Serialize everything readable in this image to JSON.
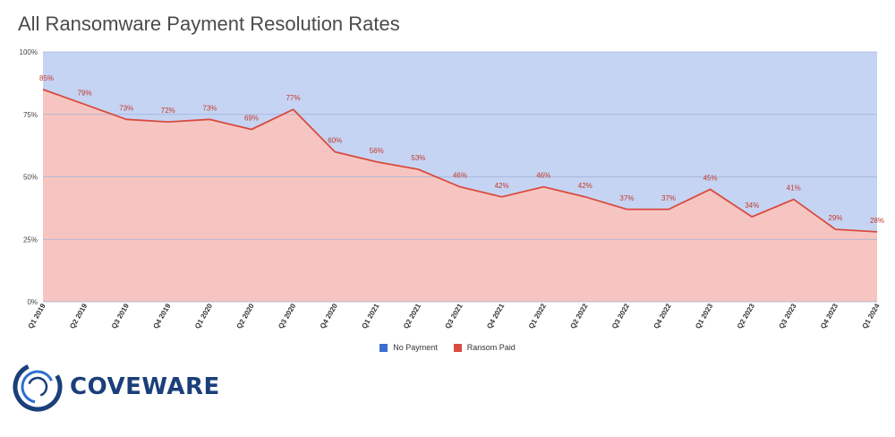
{
  "chart_data": {
    "type": "area",
    "title": "All Ransomware Payment Resolution Rates",
    "categories": [
      "Q1 2019",
      "Q2 2019",
      "Q3 2019",
      "Q4 2019",
      "Q1 2020",
      "Q2 2020",
      "Q3 2020",
      "Q4 2020",
      "Q1 2021",
      "Q2 2021",
      "Q3 2021",
      "Q4 2021",
      "Q1 2022",
      "Q2 2022",
      "Q3 2022",
      "Q4 2022",
      "Q1 2023",
      "Q2 2023",
      "Q3 2023",
      "Q4 2023",
      "Q1 2024"
    ],
    "series": [
      {
        "name": "Ransom Paid",
        "color": "#d94b3f",
        "fill": "#f7c5c1",
        "values": [
          85,
          79,
          73,
          72,
          73,
          69,
          77,
          60,
          56,
          53,
          46,
          42,
          46,
          42,
          37,
          37,
          45,
          34,
          41,
          29,
          28
        ],
        "labels": [
          "85%",
          "79%",
          "73%",
          "72%",
          "73%",
          "69%",
          "77%",
          "60%",
          "56%",
          "53%",
          "46%",
          "42%",
          "46%",
          "42%",
          "37%",
          "37%",
          "45%",
          "34%",
          "41%",
          "29%",
          "28%"
        ]
      },
      {
        "name": "No Payment",
        "color": "#3a6fd1",
        "fill": "#c6d4f3",
        "values": [
          15,
          21,
          27,
          28,
          27,
          31,
          23,
          40,
          44,
          47,
          54,
          58,
          54,
          58,
          63,
          63,
          55,
          66,
          59,
          71,
          72
        ]
      }
    ],
    "ylim": [
      0,
      100
    ],
    "yticks": [
      0,
      25,
      50,
      75,
      100
    ],
    "ytick_labels": [
      "0%",
      "25%",
      "50%",
      "75%",
      "100%"
    ],
    "stacked": true,
    "grid": true,
    "legend_position": "bottom"
  },
  "legend": {
    "items": [
      {
        "label": "No Payment",
        "color": "#3a6fd1"
      },
      {
        "label": "Ransom Paid",
        "color": "#d94b3f"
      }
    ]
  },
  "logo": {
    "text": "COVEWARE",
    "icon": "coveware-ring-icon",
    "color": "#1a3f7a"
  }
}
